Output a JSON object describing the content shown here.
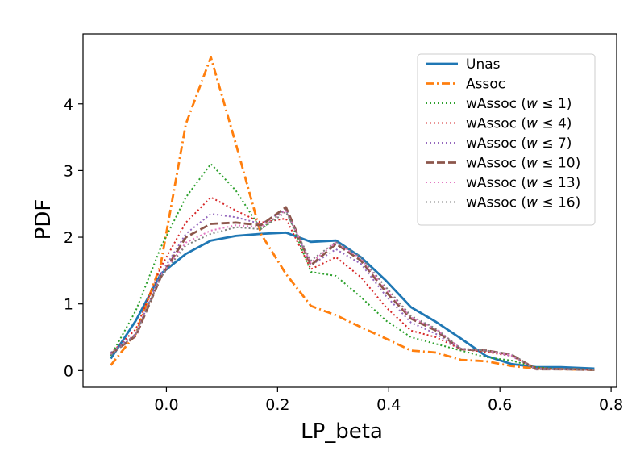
{
  "chart_data": {
    "type": "line",
    "title": "",
    "xlabel": "LP_beta",
    "ylabel": "PDF",
    "xlim": [
      -0.15,
      0.81
    ],
    "ylim": [
      -0.25,
      5.05
    ],
    "xticks": [
      0.0,
      0.2,
      0.4,
      0.6,
      0.8
    ],
    "xtick_labels": [
      "0.0",
      "0.2",
      "0.4",
      "0.6",
      "0.8"
    ],
    "yticks": [
      0,
      1,
      2,
      3,
      4
    ],
    "ytick_labels": [
      "0",
      "1",
      "2",
      "3",
      "4"
    ],
    "grid": false,
    "legend_position": "top-right",
    "x": [
      -0.1,
      -0.055,
      -0.01,
      0.035,
      0.08,
      0.125,
      0.17,
      0.215,
      0.26,
      0.305,
      0.35,
      0.395,
      0.44,
      0.485,
      0.53,
      0.575,
      0.62,
      0.665,
      0.71,
      0.77
    ],
    "series": [
      {
        "name": "Unas",
        "label_prefix": "Unas",
        "label_w": "",
        "color": "#1f77b4",
        "style": "solid",
        "width": 2.8,
        "values": [
          0.18,
          0.75,
          1.45,
          1.75,
          1.95,
          2.02,
          2.05,
          2.07,
          1.93,
          1.95,
          1.7,
          1.35,
          0.95,
          0.73,
          0.48,
          0.22,
          0.1,
          0.05,
          0.05,
          0.03
        ]
      },
      {
        "name": "Assoc",
        "label_prefix": "Assoc",
        "label_w": "",
        "color": "#ff7f0e",
        "style": "dashdot",
        "width": 2.8,
        "values": [
          0.08,
          0.55,
          1.6,
          3.7,
          4.7,
          3.4,
          2.05,
          1.45,
          0.97,
          0.83,
          0.65,
          0.48,
          0.3,
          0.27,
          0.16,
          0.14,
          0.07,
          0.03,
          0.02,
          0.01
        ]
      },
      {
        "name": "wAssoc (w ≤ 1)",
        "label_prefix": "wAssoc (",
        "label_w": "w",
        "label_suffix": " ≤ 1)",
        "color": "#2ca02c",
        "style": "dotted",
        "width": 2.0,
        "values": [
          0.22,
          0.9,
          1.85,
          2.6,
          3.1,
          2.7,
          2.12,
          2.42,
          1.48,
          1.42,
          1.1,
          0.75,
          0.5,
          0.4,
          0.3,
          0.2,
          0.15,
          0.05,
          0.02,
          0.01
        ]
      },
      {
        "name": "wAssoc (w ≤ 4)",
        "label_prefix": "wAssoc (",
        "label_w": "w",
        "label_suffix": " ≤ 4)",
        "color": "#d62728",
        "style": "dotted",
        "width": 2.0,
        "values": [
          0.26,
          0.62,
          1.55,
          2.22,
          2.6,
          2.4,
          2.22,
          2.28,
          1.52,
          1.7,
          1.4,
          0.95,
          0.6,
          0.5,
          0.32,
          0.28,
          0.22,
          0.04,
          0.02,
          0.01
        ]
      },
      {
        "name": "wAssoc (w ≤ 7)",
        "label_prefix": "wAssoc (",
        "label_w": "w",
        "label_suffix": " ≤ 7)",
        "color": "#9467bd",
        "style": "dotted",
        "width": 2.0,
        "values": [
          0.27,
          0.55,
          1.45,
          2.05,
          2.35,
          2.3,
          2.2,
          2.42,
          1.58,
          1.82,
          1.6,
          1.12,
          0.72,
          0.55,
          0.32,
          0.3,
          0.22,
          0.03,
          0.02,
          0.01
        ]
      },
      {
        "name": "wAssoc (w ≤ 10)",
        "label_prefix": "wAssoc (",
        "label_w": "w",
        "label_suffix": " ≤ 10)",
        "color": "#8c564b",
        "style": "dashed",
        "width": 2.8,
        "values": [
          0.25,
          0.52,
          1.4,
          2.0,
          2.2,
          2.22,
          2.18,
          2.45,
          1.58,
          1.9,
          1.65,
          1.18,
          0.78,
          0.6,
          0.32,
          0.3,
          0.24,
          0.02,
          0.02,
          0.01
        ]
      },
      {
        "name": "wAssoc (w ≤ 13)",
        "label_prefix": "wAssoc (",
        "label_w": "w",
        "label_suffix": " ≤ 13)",
        "color": "#e377c2",
        "style": "dotted",
        "width": 2.0,
        "values": [
          0.24,
          0.54,
          1.42,
          1.92,
          2.1,
          2.18,
          2.15,
          2.4,
          1.62,
          1.92,
          1.68,
          1.22,
          0.8,
          0.62,
          0.33,
          0.3,
          0.23,
          0.02,
          0.02,
          0.01
        ]
      },
      {
        "name": "wAssoc (w ≤ 16)",
        "label_prefix": "wAssoc (",
        "label_w": "w",
        "label_suffix": " ≤ 16)",
        "color": "#7f7f7f",
        "style": "dotted",
        "width": 2.0,
        "values": [
          0.23,
          0.55,
          1.4,
          1.88,
          2.05,
          2.15,
          2.12,
          2.38,
          1.65,
          1.93,
          1.7,
          1.25,
          0.82,
          0.63,
          0.33,
          0.3,
          0.25,
          0.02,
          0.02,
          0.01
        ]
      }
    ]
  }
}
